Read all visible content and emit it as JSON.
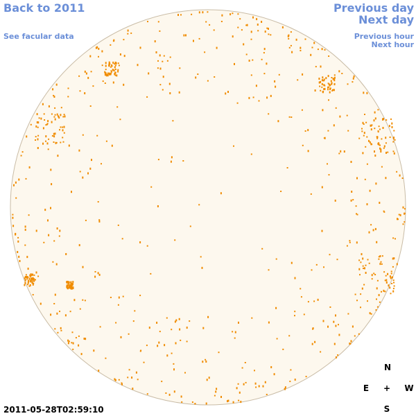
{
  "header": {
    "back": "Back to 2011",
    "facular": "See facular data",
    "previous_day": "Previous day",
    "next_day": "Next day",
    "previous_hour": "Previous hour",
    "next_hour": "Next hour"
  },
  "timestamp": "2011-05-28T02:59:10",
  "compass": {
    "north": "N",
    "east": "E",
    "center": "+",
    "west": "W",
    "south": "S"
  }
}
